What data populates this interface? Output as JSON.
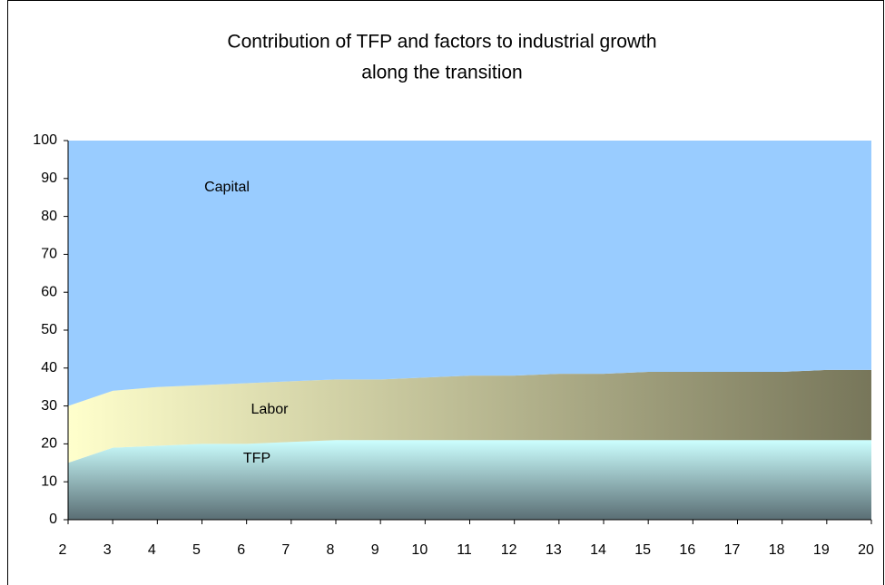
{
  "chart_data": {
    "type": "stacked_area",
    "title": [
      "Contribution of TFP and factors to industrial growth",
      "along the transition"
    ],
    "x": [
      2,
      3,
      4,
      5,
      6,
      7,
      8,
      9,
      10,
      11,
      12,
      13,
      14,
      15,
      16,
      17,
      18,
      19,
      20
    ],
    "xlim": [
      2,
      20
    ],
    "xticks": [
      2,
      3,
      4,
      5,
      6,
      7,
      8,
      9,
      10,
      11,
      12,
      13,
      14,
      15,
      16,
      17,
      18,
      19,
      20
    ],
    "ylim": [
      0,
      100
    ],
    "yticks": [
      0,
      10,
      20,
      30,
      40,
      50,
      60,
      70,
      80,
      90,
      100
    ],
    "series": [
      {
        "name": "TFP",
        "color": "#ccffff",
        "gradient": [
          "#ccffff",
          "#5a6e74"
        ],
        "gradient_direction": "vertical",
        "values": [
          15,
          19,
          19.5,
          20,
          20,
          20.5,
          21,
          21,
          21,
          21,
          21,
          21,
          21,
          21,
          21,
          21,
          21,
          21,
          21
        ]
      },
      {
        "name": "Labor",
        "color": "#ffffcc",
        "gradient": [
          "#ffffcc",
          "#77765a"
        ],
        "gradient_direction": "horizontal",
        "values": [
          15,
          15,
          15.5,
          15.5,
          16,
          16,
          16,
          16,
          16.5,
          17,
          17,
          17.5,
          17.5,
          18,
          18,
          18,
          18,
          18.5,
          18.5
        ]
      },
      {
        "name": "Capital",
        "color": "#99ccff",
        "gradient": [
          "#99ccff",
          "#99ccff"
        ],
        "gradient_direction": "vertical",
        "values": [
          70,
          66,
          65,
          64.5,
          64,
          63.5,
          63,
          63,
          62.5,
          62,
          62,
          61.5,
          61.5,
          61,
          61,
          61,
          61,
          60.5,
          60.5
        ]
      }
    ]
  }
}
